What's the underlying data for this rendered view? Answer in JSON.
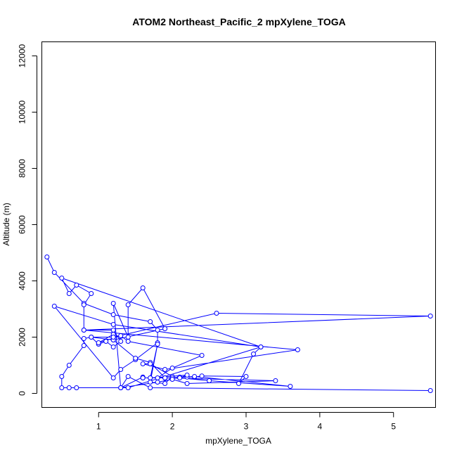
{
  "chart_data": {
    "type": "line",
    "title": "ATOM2 Northeast_Pacific_2 mpXylene_TOGA",
    "xlabel": "mpXylene_TOGA",
    "ylabel": "Altitude (m)",
    "xlim": [
      0.23,
      5.57
    ],
    "ylim": [
      -500,
      12500
    ],
    "xticks": [
      1,
      2,
      3,
      4,
      5
    ],
    "yticks": [
      0,
      2000,
      4000,
      6000,
      8000,
      10000,
      12000
    ],
    "grid": false,
    "series_color": "#0000ff",
    "series": [
      {
        "x": [
          0.3,
          0.4,
          0.8,
          1.2,
          1.7,
          1.8,
          1.8,
          1.5,
          1.3,
          1.2,
          0.4,
          1.2,
          3.2,
          0.5,
          0.6,
          0.7,
          0.9,
          0.8,
          0.8,
          1.2,
          1.3,
          1.2,
          1.1,
          1.0,
          0.9,
          1.2,
          1.9,
          1.6,
          1.4,
          1.4,
          1.2,
          1.3,
          1.6,
          1.6,
          1.7,
          1.9,
          1.7,
          1.5,
          1.2,
          1.2,
          1.0,
          1.3,
          1.4,
          2.4,
          2.0,
          1.8,
          1.6,
          1.9,
          2.0,
          2.1,
          2.2,
          2.3,
          2.4,
          3.0,
          2.9,
          3.1,
          3.2,
          1.4,
          1.3,
          0.7,
          0.6,
          0.5,
          0.5,
          0.6,
          0.8,
          0.8,
          0.9,
          1.2,
          2.6,
          5.5,
          0.8,
          3.7,
          1.9,
          1.6,
          1.7,
          2.0,
          1.9,
          1.7,
          1.8,
          1.7,
          2.2,
          2.1,
          2.5,
          3.6,
          2.3,
          2.0,
          1.9,
          3.4,
          2.2,
          2.0,
          1.8,
          1.3,
          1.4,
          1.7,
          5.5
        ],
        "y": [
          4850,
          4300,
          3200,
          2800,
          2550,
          2250,
          1800,
          1200,
          850,
          550,
          3100,
          2450,
          1650,
          4100,
          3550,
          3850,
          3550,
          3150,
          2250,
          2250,
          1850,
          1650,
          1850,
          1750,
          2000,
          1900,
          2300,
          3750,
          3150,
          2000,
          3200,
          200,
          580,
          550,
          550,
          550,
          1100,
          1250,
          1900,
          2100,
          1800,
          2050,
          1850,
          1350,
          900,
          550,
          550,
          550,
          550,
          580,
          580,
          580,
          620,
          600,
          350,
          1400,
          1650,
          200,
          200,
          200,
          200,
          200,
          600,
          1000,
          1700,
          1950,
          2000,
          2000,
          2850,
          2750,
          2250,
          1550,
          850,
          1050,
          1050,
          600,
          350,
          400,
          1750,
          550,
          650,
          550,
          450,
          250,
          600,
          550,
          550,
          450,
          350,
          500,
          400,
          200,
          600,
          200,
          100
        ]
      }
    ]
  }
}
